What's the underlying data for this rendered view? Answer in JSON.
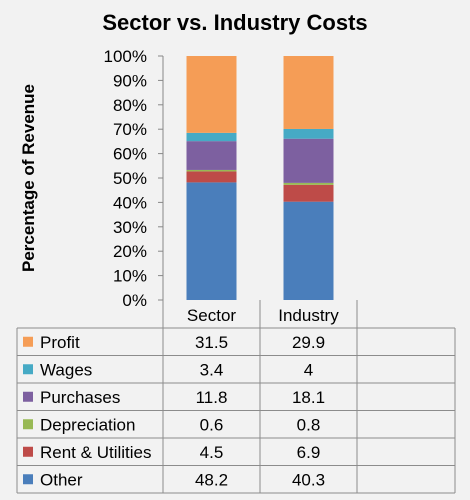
{
  "chart_data": {
    "type": "bar",
    "stacked": true,
    "title": "Sector vs. Industry Costs",
    "ylabel": "Percentage of Revenue",
    "xlabel": "",
    "ylim": [
      0,
      100
    ],
    "yticks": [
      "0%",
      "10%",
      "20%",
      "30%",
      "40%",
      "50%",
      "60%",
      "70%",
      "80%",
      "90%",
      "100%"
    ],
    "categories": [
      "Sector",
      "Industry"
    ],
    "grid": false,
    "legend": "data-table",
    "series": [
      {
        "name": "Other",
        "color": "#4a7ebb",
        "values": [
          48.2,
          40.3
        ]
      },
      {
        "name": "Rent & Utilities",
        "color": "#be4b48",
        "values": [
          4.5,
          6.9
        ]
      },
      {
        "name": "Depreciation",
        "color": "#98b954",
        "values": [
          0.6,
          0.8
        ]
      },
      {
        "name": "Purchases",
        "color": "#7d60a0",
        "values": [
          11.8,
          18.1
        ]
      },
      {
        "name": "Wages",
        "color": "#46aac5",
        "values": [
          3.4,
          4
        ]
      },
      {
        "name": "Profit",
        "color": "#f59d56",
        "values": [
          31.5,
          29.9
        ]
      }
    ],
    "table_values": [
      [
        "31.5",
        "29.9"
      ],
      [
        "3.4",
        "4"
      ],
      [
        "11.8",
        "18.1"
      ],
      [
        "0.6",
        "0.8"
      ],
      [
        "4.5",
        "6.9"
      ],
      [
        "48.2",
        "40.3"
      ]
    ]
  }
}
